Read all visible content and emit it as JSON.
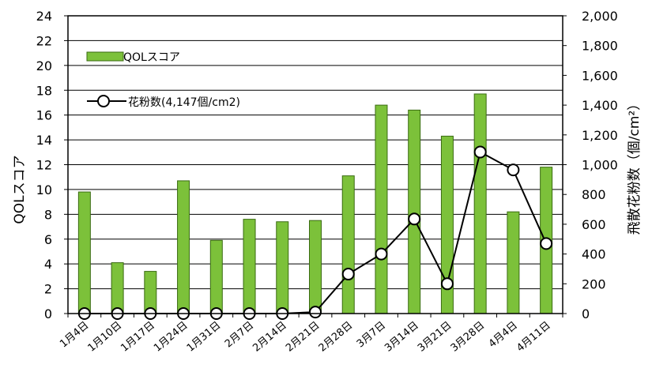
{
  "chart_data": {
    "type": "bar+line",
    "categories": [
      "1月4日",
      "1月10日",
      "1月17日",
      "1月24日",
      "1月31日",
      "2月7日",
      "2月14日",
      "2月21日",
      "2月28日",
      "3月7日",
      "3月14日",
      "3月21日",
      "3月28日",
      "4月4日",
      "4月11日"
    ],
    "series": [
      {
        "name": "QOLスコア",
        "type": "bar",
        "axis": "left",
        "color": "#7cc13a",
        "values": [
          9.8,
          4.1,
          3.4,
          10.7,
          5.9,
          7.6,
          7.4,
          7.5,
          11.1,
          16.8,
          16.4,
          14.3,
          17.7,
          8.2,
          11.8
        ]
      },
      {
        "name": "花粉数(4,147個/cm2)",
        "type": "line",
        "axis": "right",
        "color": "#000000",
        "values": [
          0,
          0,
          0,
          0,
          0,
          0,
          0,
          10,
          265,
          400,
          635,
          200,
          1085,
          965,
          470
        ]
      }
    ],
    "y_left": {
      "label": "QOLスコア",
      "ylim": [
        0,
        24
      ],
      "ticks": [
        "0",
        "2",
        "4",
        "6",
        "8",
        "10",
        "12",
        "14",
        "16",
        "18",
        "20",
        "22",
        "24"
      ]
    },
    "y_right": {
      "label": "飛散花粉数（個/cm²）",
      "ylim": [
        0,
        2000
      ],
      "ticks": [
        "0",
        "200",
        "400",
        "600",
        "800",
        "1,000",
        "1,200",
        "1,400",
        "1,600",
        "1,800",
        "2,000"
      ]
    },
    "legend": {
      "position": "top-left",
      "entries": [
        "QOLスコア",
        "花粉数(4,147個/cm2)"
      ]
    },
    "grid": true
  }
}
